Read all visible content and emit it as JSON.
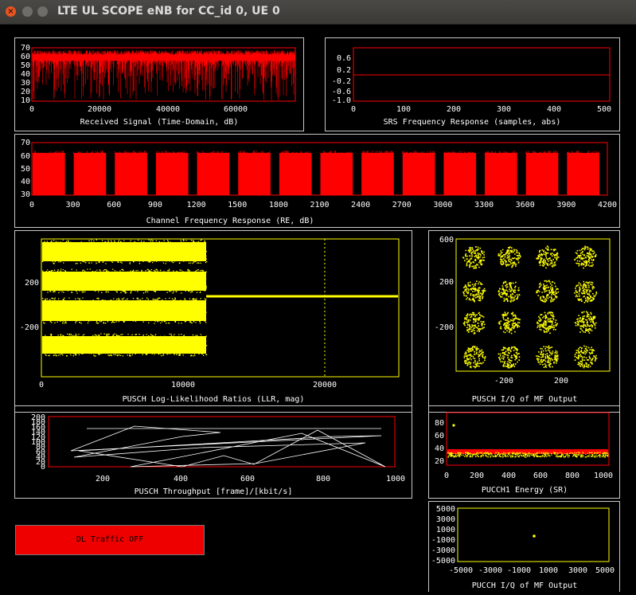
{
  "window": {
    "title": "LTE UL SCOPE eNB for CC_id 0, UE 0"
  },
  "panels": {
    "rx_signal": {
      "caption": "Received Signal (Time-Domain, dB)",
      "y_ticks": [
        "70",
        "60",
        "50",
        "40",
        "30",
        "20",
        "10"
      ],
      "x_ticks": [
        "0",
        "20000",
        "40000",
        "60000"
      ]
    },
    "srs": {
      "caption": "SRS Frequency Response (samples, abs)",
      "y_ticks": [
        "0.6",
        "0.2",
        "-0.2",
        "-0.6",
        "-1.0"
      ],
      "x_ticks": [
        "0",
        "100",
        "200",
        "300",
        "400",
        "500"
      ]
    },
    "channel_freq": {
      "caption": "Channel Frequency  Response (RE, dB)",
      "y_ticks": [
        "70",
        "60",
        "50",
        "40",
        "30"
      ],
      "x_ticks": [
        "0",
        "300",
        "600",
        "900",
        "1200",
        "1500",
        "1800",
        "2100",
        "2400",
        "2700",
        "3000",
        "3300",
        "3600",
        "3900",
        "4200"
      ]
    },
    "llr": {
      "caption": "PUSCH Log-Likelihood Ratios (LLR, mag)",
      "y_ticks": [
        "200",
        "-200"
      ],
      "x_ticks": [
        "0",
        "10000",
        "20000"
      ]
    },
    "pusch_iq": {
      "caption": "PUSCH I/Q of MF Output",
      "y_ticks": [
        "600",
        "200",
        "-200"
      ],
      "x_ticks": [
        "-200",
        "200"
      ]
    },
    "throughput": {
      "caption": "PUSCH Throughput [frame]/[kbit/s]",
      "y_ticks": [
        "200",
        "180",
        "160",
        "140",
        "120",
        "100",
        "80",
        "60",
        "40",
        "20",
        "0"
      ],
      "x_ticks": [
        "200",
        "400",
        "600",
        "800",
        "1000"
      ]
    },
    "pucch1": {
      "caption": "PUCCH1 Energy (SR)",
      "y_ticks": [
        "80",
        "60",
        "40",
        "20",
        "0"
      ],
      "x_ticks": [
        "0",
        "200",
        "400",
        "600",
        "800",
        "1000"
      ]
    },
    "pucch_iq": {
      "caption": "PUCCH I/Q of MF Output",
      "y_ticks": [
        "5000",
        "3000",
        "1000",
        "-1000",
        "-3000",
        "-5000"
      ],
      "x_ticks": [
        "-5000",
        "-3000",
        "-1000",
        "1000",
        "3000",
        "5000"
      ]
    }
  },
  "dl_traffic_button": {
    "label": "DL Traffic OFF"
  },
  "colors": {
    "signal": "#ff0000",
    "llr": "#ffff00",
    "iq": "#ffff00",
    "line": "#ffffff",
    "axis": "#ff0000"
  }
}
